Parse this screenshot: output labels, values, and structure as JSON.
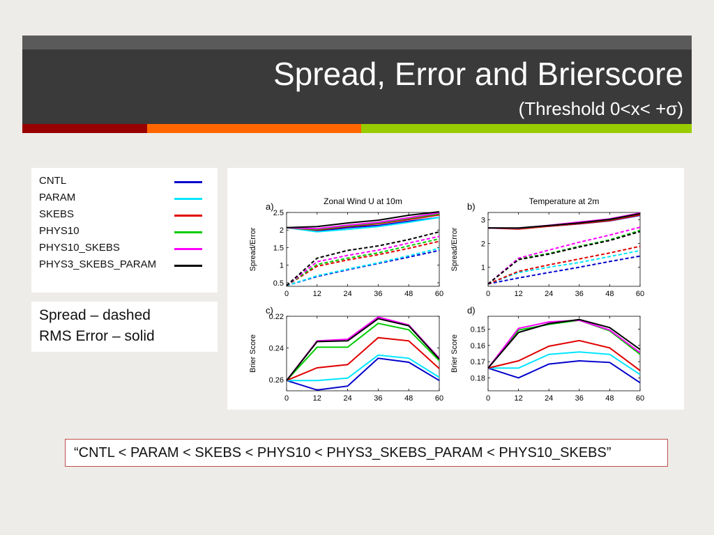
{
  "slide": {
    "title": "Spread, Error and Brierscore",
    "subtitle": "(Threshold 0<x< +σ)",
    "accent_colors": [
      "#990000",
      "#ff6600",
      "#99cc00"
    ],
    "note_line1": "Spread       – dashed",
    "note_line2": "RMS Error – solid",
    "ranking": "“CNTL < PARAM < SKEBS < PHYS10 < PHYS3_SKEBS_PARAM < PHYS10_SKEBS”"
  },
  "legend": [
    {
      "name": "CNTL",
      "color": "#0000cc"
    },
    {
      "name": "PARAM",
      "color": "#00e5ff"
    },
    {
      "name": "SKEBS",
      "color": "#e00000"
    },
    {
      "name": "PHYS10",
      "color": "#00cc00"
    },
    {
      "name": "PHYS10_SKEBS",
      "color": "#ff00ff"
    },
    {
      "name": "PHYS3_SKEBS_PARAM",
      "color": "#000000"
    }
  ],
  "chart_data": [
    {
      "panel_letter": "a)",
      "type": "line",
      "title": "Zonal Wind U at 10m",
      "ylabel": "Spread/Error",
      "x": [
        0,
        12,
        24,
        36,
        48,
        60
      ],
      "xticks": [
        "0",
        "12",
        "24",
        "36",
        "48",
        "60"
      ],
      "ylim": [
        0.4,
        2.5
      ],
      "yticks": [
        0.5,
        1,
        1.5,
        2,
        2.5
      ],
      "ytick_labels": [
        "0.5",
        "1",
        "1.5",
        "2",
        "2.5"
      ],
      "reversed": false,
      "series": [
        {
          "name": "CNTL",
          "style": "solid",
          "values": [
            2.07,
            1.97,
            2.07,
            2.13,
            2.25,
            2.36
          ]
        },
        {
          "name": "PARAM",
          "style": "solid",
          "values": [
            2.07,
            1.95,
            2.02,
            2.1,
            2.22,
            2.36
          ]
        },
        {
          "name": "SKEBS",
          "style": "solid",
          "values": [
            2.07,
            2.0,
            2.1,
            2.18,
            2.3,
            2.43
          ]
        },
        {
          "name": "PHYS10",
          "style": "solid",
          "values": [
            2.07,
            2.02,
            2.12,
            2.2,
            2.33,
            2.46
          ]
        },
        {
          "name": "PHYS10_SKEBS",
          "style": "solid",
          "values": [
            2.07,
            2.04,
            2.14,
            2.22,
            2.35,
            2.49
          ]
        },
        {
          "name": "PHYS3_SKEBS_PARAM",
          "style": "solid",
          "values": [
            2.07,
            2.1,
            2.2,
            2.28,
            2.42,
            2.52
          ]
        },
        {
          "name": "CNTL",
          "style": "dashed",
          "values": [
            0.42,
            0.68,
            0.87,
            1.05,
            1.23,
            1.42
          ]
        },
        {
          "name": "PARAM",
          "style": "dashed",
          "values": [
            0.42,
            0.7,
            0.89,
            1.07,
            1.27,
            1.48
          ]
        },
        {
          "name": "SKEBS",
          "style": "dashed",
          "values": [
            0.42,
            0.97,
            1.15,
            1.3,
            1.48,
            1.68
          ]
        },
        {
          "name": "PHYS10",
          "style": "dashed",
          "values": [
            0.42,
            1.02,
            1.2,
            1.35,
            1.55,
            1.75
          ]
        },
        {
          "name": "PHYS10_SKEBS",
          "style": "dashed",
          "values": [
            0.42,
            1.1,
            1.28,
            1.43,
            1.63,
            1.82
          ]
        },
        {
          "name": "PHYS3_SKEBS_PARAM",
          "style": "dashed",
          "values": [
            0.42,
            1.2,
            1.42,
            1.55,
            1.73,
            1.95
          ]
        }
      ]
    },
    {
      "panel_letter": "b)",
      "type": "line",
      "title": "Temperature at 2m",
      "ylabel": "Spread/Error",
      "x": [
        0,
        12,
        24,
        36,
        48,
        60
      ],
      "xticks": [
        "0",
        "12",
        "24",
        "36",
        "48",
        "60"
      ],
      "ylim": [
        0.2,
        3.3
      ],
      "yticks": [
        1,
        2,
        3
      ],
      "ytick_labels": [
        "1",
        "2",
        "3"
      ],
      "reversed": false,
      "series": [
        {
          "name": "CNTL",
          "style": "solid",
          "values": [
            2.65,
            2.62,
            2.72,
            2.82,
            2.95,
            3.18
          ]
        },
        {
          "name": "PARAM",
          "style": "solid",
          "values": [
            2.65,
            2.63,
            2.73,
            2.83,
            2.97,
            3.2
          ]
        },
        {
          "name": "SKEBS",
          "style": "solid",
          "values": [
            2.65,
            2.6,
            2.72,
            2.83,
            2.96,
            3.2
          ]
        },
        {
          "name": "PHYS10",
          "style": "solid",
          "values": [
            2.65,
            2.63,
            2.75,
            2.86,
            3.0,
            3.25
          ]
        },
        {
          "name": "PHYS10_SKEBS",
          "style": "solid",
          "values": [
            2.65,
            2.64,
            2.76,
            2.9,
            3.03,
            3.28
          ]
        },
        {
          "name": "PHYS3_SKEBS_PARAM",
          "style": "solid",
          "values": [
            2.65,
            2.65,
            2.75,
            2.86,
            3.01,
            3.25
          ]
        },
        {
          "name": "CNTL",
          "style": "dashed",
          "values": [
            0.3,
            0.55,
            0.78,
            1.0,
            1.24,
            1.47
          ]
        },
        {
          "name": "PARAM",
          "style": "dashed",
          "values": [
            0.3,
            0.78,
            1.0,
            1.2,
            1.45,
            1.7
          ]
        },
        {
          "name": "SKEBS",
          "style": "dashed",
          "values": [
            0.3,
            0.83,
            1.1,
            1.35,
            1.6,
            1.88
          ]
        },
        {
          "name": "PHYS10",
          "style": "dashed",
          "values": [
            0.3,
            1.35,
            1.58,
            1.88,
            2.15,
            2.55
          ]
        },
        {
          "name": "PHYS10_SKEBS",
          "style": "dashed",
          "values": [
            0.3,
            1.38,
            1.72,
            2.05,
            2.35,
            2.68
          ]
        },
        {
          "name": "PHYS3_SKEBS_PARAM",
          "style": "dashed",
          "values": [
            0.3,
            1.32,
            1.55,
            1.85,
            2.12,
            2.5
          ]
        }
      ]
    },
    {
      "panel_letter": "c)",
      "type": "line",
      "title": "",
      "ylabel": "Brier Score",
      "x": [
        0,
        12,
        24,
        36,
        48,
        60
      ],
      "xticks": [
        "0",
        "12",
        "24",
        "36",
        "48",
        "60"
      ],
      "ylim": [
        0.22,
        0.267
      ],
      "yticks": [
        0.22,
        0.24,
        0.26
      ],
      "ytick_labels": [
        "0.22",
        "0.24",
        "0.26"
      ],
      "reversed": true,
      "series": [
        {
          "name": "CNTL",
          "style": "solid",
          "values": [
            0.2605,
            0.2665,
            0.264,
            0.2465,
            0.249,
            0.2605
          ]
        },
        {
          "name": "PARAM",
          "style": "solid",
          "values": [
            0.2605,
            0.2605,
            0.259,
            0.2445,
            0.2465,
            0.2585
          ]
        },
        {
          "name": "SKEBS",
          "style": "solid",
          "values": [
            0.2605,
            0.2525,
            0.2505,
            0.2335,
            0.2355,
            0.253
          ]
        },
        {
          "name": "PHYS10",
          "style": "solid",
          "values": [
            0.2605,
            0.2395,
            0.2395,
            0.2245,
            0.2285,
            0.248
          ]
        },
        {
          "name": "PHYS10_SKEBS",
          "style": "solid",
          "values": [
            0.2605,
            0.2355,
            0.2345,
            0.2205,
            0.2255,
            0.2465
          ]
        },
        {
          "name": "PHYS3_SKEBS_PARAM",
          "style": "solid",
          "values": [
            0.2605,
            0.236,
            0.2355,
            0.2215,
            0.226,
            0.247
          ]
        }
      ]
    },
    {
      "panel_letter": "d)",
      "type": "line",
      "title": "",
      "ylabel": "Brier Score",
      "x": [
        0,
        12,
        24,
        36,
        48,
        60
      ],
      "xticks": [
        "0",
        "12",
        "24",
        "36",
        "48",
        "60"
      ],
      "ylim": [
        0.142,
        0.188
      ],
      "yticks": [
        0.15,
        0.16,
        0.17,
        0.18
      ],
      "ytick_labels": [
        "0.15",
        "0.16",
        "0.17",
        "0.18"
      ],
      "reversed": true,
      "series": [
        {
          "name": "CNTL",
          "style": "solid",
          "values": [
            0.174,
            0.18,
            0.1715,
            0.1695,
            0.1705,
            0.183
          ]
        },
        {
          "name": "PARAM",
          "style": "solid",
          "values": [
            0.174,
            0.174,
            0.1655,
            0.164,
            0.1655,
            0.178
          ]
        },
        {
          "name": "SKEBS",
          "style": "solid",
          "values": [
            0.174,
            0.1695,
            0.1605,
            0.157,
            0.1615,
            0.1755
          ]
        },
        {
          "name": "PHYS10",
          "style": "solid",
          "values": [
            0.174,
            0.1505,
            0.147,
            0.1445,
            0.151,
            0.1655
          ]
        },
        {
          "name": "PHYS10_SKEBS",
          "style": "solid",
          "values": [
            0.174,
            0.1495,
            0.1455,
            0.1445,
            0.1505,
            0.1645
          ]
        },
        {
          "name": "PHYS3_SKEBS_PARAM",
          "style": "solid",
          "values": [
            0.174,
            0.152,
            0.1465,
            0.144,
            0.149,
            0.1625
          ]
        }
      ]
    }
  ]
}
